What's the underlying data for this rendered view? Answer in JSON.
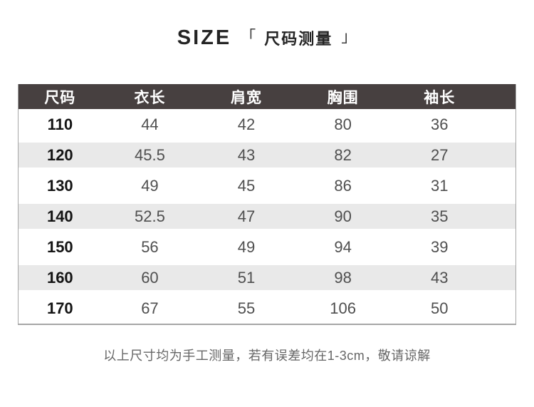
{
  "title": {
    "en": "SIZE",
    "bracket_left": "「",
    "zh": "尺码测量",
    "bracket_right": "」"
  },
  "chart_data": {
    "type": "table",
    "title": "SIZE 「 尺码测量 」",
    "columns": [
      "尺码",
      "衣长",
      "肩宽",
      "胸围",
      "袖长"
    ],
    "rows": [
      [
        "110",
        "44",
        "42",
        "80",
        "36"
      ],
      [
        "120",
        "45.5",
        "43",
        "82",
        "27"
      ],
      [
        "130",
        "49",
        "45",
        "86",
        "31"
      ],
      [
        "140",
        "52.5",
        "47",
        "90",
        "35"
      ],
      [
        "150",
        "56",
        "49",
        "94",
        "39"
      ],
      [
        "160",
        "60",
        "51",
        "98",
        "43"
      ],
      [
        "170",
        "67",
        "55",
        "106",
        "50"
      ]
    ],
    "note": "以上尺寸均为手工测量，若有误差均在1-3cm，敬请谅解"
  },
  "footer": {
    "note": "以上尺寸均为手工测量，若有误差均在1-3cm，敬请谅解"
  },
  "colors": {
    "header_bg": "#474040",
    "header_text": "#ffffff",
    "row_alt_bg": "#e9e9e9",
    "border": "#a6a6a6",
    "title_text": "#242424",
    "text_primary": "#141414",
    "text_secondary": "#4f4f4f",
    "footer_text": "#666666"
  }
}
